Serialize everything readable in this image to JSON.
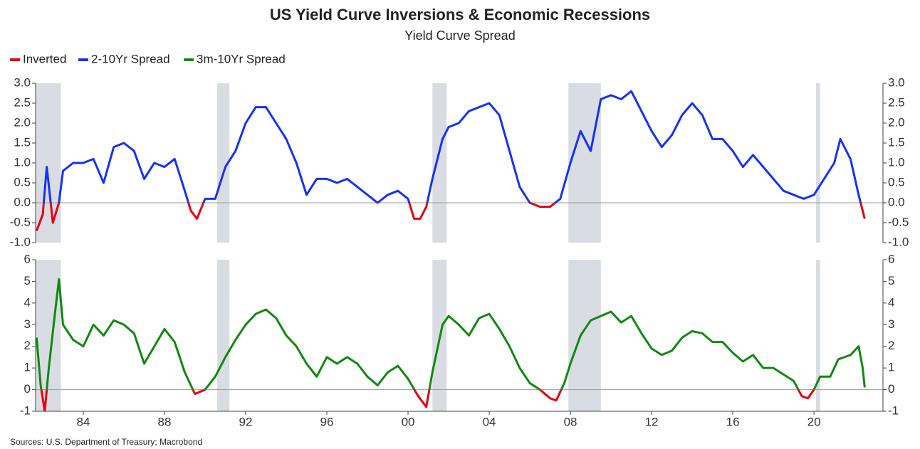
{
  "inverted": {
    "name": "Inverted",
    "color": "#e8000b"
  },
  "source": "Sources: U.S. Department of Treasury; Macrobond",
  "chart_data": [
    {
      "type": "line",
      "title": "US Yield Curve Inversions & Economic Recessions",
      "subtitle": "Yield Curve Spread",
      "xlim": [
        1981.65,
        2023.4
      ],
      "xticks": [
        {
          "value": 1984,
          "label": "84"
        },
        {
          "value": 1988,
          "label": "88"
        },
        {
          "value": 1992,
          "label": "92"
        },
        {
          "value": 1996,
          "label": "96"
        },
        {
          "value": 2000,
          "label": "00"
        },
        {
          "value": 2004,
          "label": "04"
        },
        {
          "value": 2008,
          "label": "08"
        },
        {
          "value": 2012,
          "label": "12"
        },
        {
          "value": 2016,
          "label": "16"
        },
        {
          "value": 2020,
          "label": "20"
        }
      ],
      "ylim": [
        -1,
        3
      ],
      "yticks": [
        {
          "value": -1,
          "label": "-1.0"
        },
        -0.5,
        {
          "value": 0,
          "label": "0.0"
        },
        0.5,
        {
          "value": 1,
          "label": "1.0"
        },
        1.5,
        {
          "value": 2,
          "label": "2.0"
        },
        2.5,
        {
          "value": 3,
          "label": "3.0"
        }
      ],
      "y2lim": [
        -1,
        3
      ],
      "y2ticks": [
        {
          "value": -1,
          "label": "-1.0"
        },
        -0.5,
        {
          "value": 0,
          "label": "0.0"
        },
        0.5,
        {
          "value": 1,
          "label": "1.0"
        },
        1.5,
        {
          "value": 2,
          "label": "2.0"
        },
        2.5,
        {
          "value": 3,
          "label": "3.0"
        }
      ],
      "recession_color": "#d9dde3",
      "recessions": [
        [
          1981.5,
          1982.9
        ],
        [
          1990.6,
          1991.2
        ],
        [
          2001.2,
          2001.9
        ],
        [
          2007.9,
          2009.5
        ],
        [
          2020.1,
          2020.3
        ]
      ],
      "x": [
        1981.7,
        1982.0,
        1982.2,
        1982.5,
        1982.8,
        1983.0,
        1983.5,
        1984.0,
        1984.5,
        1985.0,
        1985.5,
        1986.0,
        1986.5,
        1987.0,
        1987.5,
        1988.0,
        1988.5,
        1989.0,
        1989.3,
        1989.6,
        1990.0,
        1990.5,
        1991.0,
        1991.5,
        1992.0,
        1992.5,
        1993.0,
        1993.5,
        1994.0,
        1994.5,
        1995.0,
        1995.5,
        1996.0,
        1996.5,
        1997.0,
        1997.5,
        1998.0,
        1998.5,
        1999.0,
        1999.5,
        2000.0,
        2000.3,
        2000.6,
        2000.9,
        2001.2,
        2001.7,
        2002.0,
        2002.5,
        2003.0,
        2003.5,
        2004.0,
        2004.5,
        2005.0,
        2005.5,
        2006.0,
        2006.5,
        2007.0,
        2007.5,
        2008.0,
        2008.5,
        2009.0,
        2009.5,
        2010.0,
        2010.5,
        2011.0,
        2011.5,
        2012.0,
        2012.5,
        2013.0,
        2013.5,
        2014.0,
        2014.5,
        2015.0,
        2015.5,
        2016.0,
        2016.5,
        2017.0,
        2017.5,
        2018.0,
        2018.5,
        2019.0,
        2019.5,
        2020.0,
        2020.5,
        2021.0,
        2021.3,
        2021.8,
        2022.2,
        2022.5
      ],
      "series": [
        {
          "name": "2-10Yr Spread",
          "color": "#1432f5",
          "values": [
            -0.7,
            -0.3,
            0.9,
            -0.5,
            0.0,
            0.8,
            1.0,
            1.0,
            1.1,
            0.5,
            1.4,
            1.5,
            1.3,
            0.6,
            1.0,
            0.9,
            1.1,
            0.3,
            -0.2,
            -0.4,
            0.1,
            0.1,
            0.9,
            1.3,
            2.0,
            2.4,
            2.4,
            2.0,
            1.6,
            1.0,
            0.2,
            0.6,
            0.6,
            0.5,
            0.6,
            0.4,
            0.2,
            0.0,
            0.2,
            0.3,
            0.1,
            -0.4,
            -0.4,
            -0.1,
            0.6,
            1.6,
            1.9,
            2.0,
            2.3,
            2.4,
            2.5,
            2.2,
            1.3,
            0.4,
            0.0,
            -0.1,
            -0.1,
            0.1,
            1.0,
            1.8,
            1.3,
            2.6,
            2.7,
            2.6,
            2.8,
            2.3,
            1.8,
            1.4,
            1.7,
            2.2,
            2.5,
            2.2,
            1.6,
            1.6,
            1.3,
            0.9,
            1.2,
            0.9,
            0.6,
            0.3,
            0.2,
            0.1,
            0.2,
            0.6,
            1.0,
            1.6,
            1.1,
            0.2,
            -0.4
          ]
        }
      ]
    },
    {
      "type": "line",
      "xlim": [
        1981.65,
        2023.4
      ],
      "ylim": [
        -1,
        6
      ],
      "yticks": [
        -1,
        0,
        1,
        2,
        3,
        4,
        5,
        6
      ],
      "y2lim": [
        -1,
        6
      ],
      "y2ticks": [
        -1,
        0,
        1,
        2,
        3,
        4,
        5,
        6
      ],
      "recession_color": "#d9dde3",
      "recessions": [
        [
          1981.5,
          1982.9
        ],
        [
          1990.6,
          1991.2
        ],
        [
          2001.2,
          2001.9
        ],
        [
          2007.9,
          2009.5
        ],
        [
          2020.1,
          2020.3
        ]
      ],
      "x": [
        1981.7,
        1981.9,
        1982.1,
        1982.3,
        1982.6,
        1982.8,
        1983.0,
        1983.5,
        1984.0,
        1984.5,
        1985.0,
        1985.5,
        1986.0,
        1986.5,
        1987.0,
        1987.5,
        1988.0,
        1988.5,
        1989.0,
        1989.5,
        1990.0,
        1990.5,
        1991.0,
        1991.5,
        1992.0,
        1992.5,
        1993.0,
        1993.5,
        1994.0,
        1994.5,
        1995.0,
        1995.5,
        1996.0,
        1996.5,
        1997.0,
        1997.5,
        1998.0,
        1998.5,
        1999.0,
        1999.5,
        2000.0,
        2000.5,
        2000.9,
        2001.2,
        2001.7,
        2002.0,
        2002.5,
        2003.0,
        2003.5,
        2004.0,
        2004.5,
        2005.0,
        2005.5,
        2006.0,
        2006.5,
        2007.0,
        2007.3,
        2007.7,
        2008.0,
        2008.5,
        2009.0,
        2009.5,
        2010.0,
        2010.5,
        2011.0,
        2011.5,
        2012.0,
        2012.5,
        2013.0,
        2013.5,
        2014.0,
        2014.5,
        2015.0,
        2015.5,
        2016.0,
        2016.5,
        2017.0,
        2017.5,
        2018.0,
        2018.5,
        2019.0,
        2019.4,
        2019.7,
        2020.0,
        2020.3,
        2020.8,
        2021.2,
        2021.8,
        2022.2,
        2022.4,
        2022.5
      ],
      "series": [
        {
          "name": "3m-10Yr Spread",
          "color": "#0e8a0e",
          "values": [
            2.4,
            0.2,
            -1.0,
            1.0,
            3.5,
            5.1,
            3.0,
            2.3,
            2.0,
            3.0,
            2.5,
            3.2,
            3.0,
            2.6,
            1.2,
            2.0,
            2.8,
            2.2,
            0.8,
            -0.2,
            0.0,
            0.6,
            1.5,
            2.3,
            3.0,
            3.5,
            3.7,
            3.3,
            2.5,
            2.0,
            1.2,
            0.6,
            1.5,
            1.2,
            1.5,
            1.2,
            0.6,
            0.2,
            0.8,
            1.1,
            0.5,
            -0.3,
            -0.8,
            0.8,
            3.0,
            3.4,
            3.0,
            2.5,
            3.3,
            3.5,
            2.8,
            2.0,
            1.0,
            0.3,
            0.0,
            -0.4,
            -0.5,
            0.3,
            1.2,
            2.5,
            3.2,
            3.4,
            3.6,
            3.1,
            3.4,
            2.6,
            1.9,
            1.6,
            1.8,
            2.4,
            2.7,
            2.6,
            2.2,
            2.2,
            1.7,
            1.3,
            1.6,
            1.0,
            1.0,
            0.7,
            0.4,
            -0.3,
            -0.4,
            0.0,
            0.6,
            0.6,
            1.4,
            1.6,
            2.0,
            1.0,
            0.1
          ]
        }
      ]
    }
  ]
}
